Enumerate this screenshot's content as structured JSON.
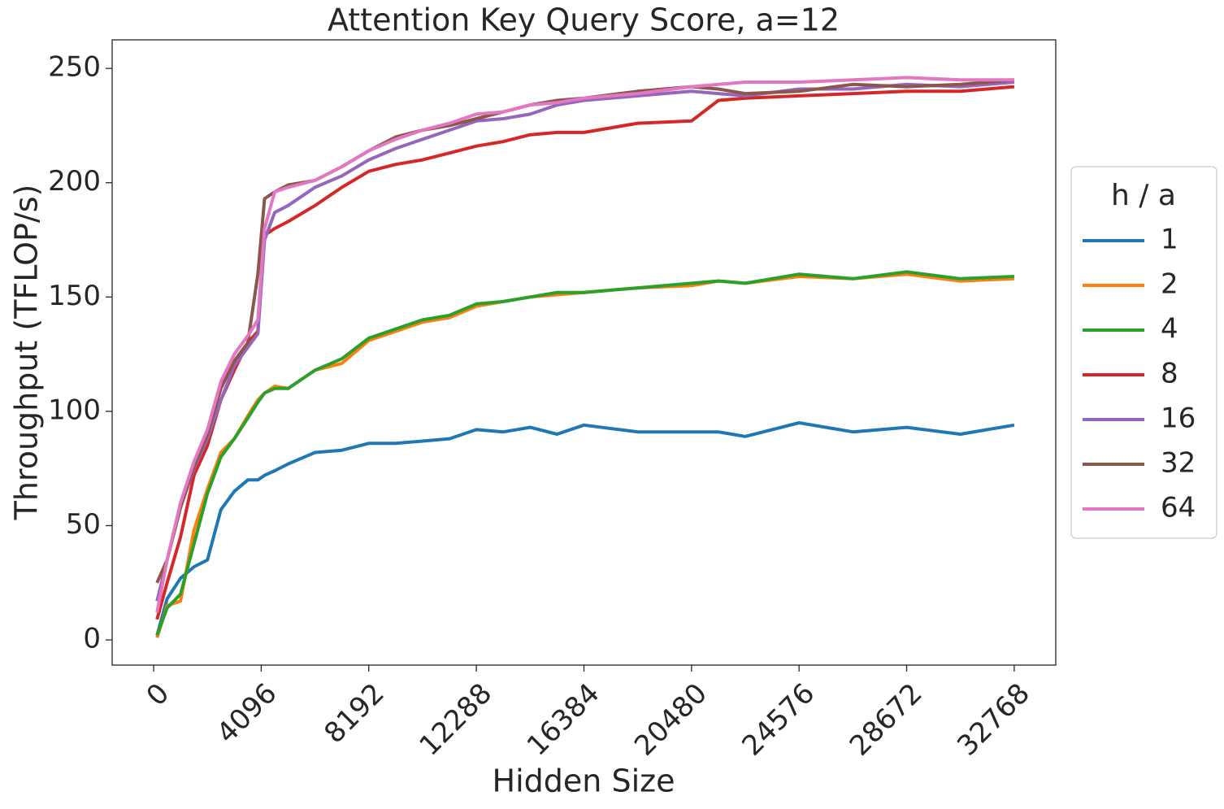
{
  "chart_data": {
    "type": "line",
    "title": "Attention Key Query Score, a=12",
    "xlabel": "Hidden Size",
    "ylabel": "Throughput (TFLOP/s)",
    "legend_title": "h / a",
    "legend": "right",
    "x": [
      128,
      512,
      1024,
      1536,
      2048,
      2560,
      3072,
      3584,
      3968,
      4224,
      4608,
      5120,
      6144,
      7168,
      8192,
      9216,
      10240,
      11264,
      12288,
      13312,
      14336,
      15360,
      16384,
      18432,
      20480,
      21504,
      22528,
      24576,
      26624,
      28672,
      30720,
      32768
    ],
    "series": [
      {
        "name": "1",
        "color": "#1f77b4",
        "values": [
          2,
          18,
          27,
          32,
          35,
          57,
          65,
          70,
          70,
          72,
          74,
          77,
          82,
          83,
          86,
          86,
          87,
          88,
          92,
          91,
          93,
          90,
          94,
          91,
          91,
          91,
          89,
          95,
          91,
          93,
          90,
          94
        ]
      },
      {
        "name": "2",
        "color": "#ff7f0e",
        "values": [
          1,
          15,
          17,
          48,
          66,
          82,
          88,
          98,
          105,
          108,
          111,
          110,
          118,
          121,
          131,
          135,
          139,
          141,
          146,
          148,
          150,
          151,
          152,
          154,
          155,
          157,
          156,
          159,
          158,
          160,
          157,
          158
        ]
      },
      {
        "name": "4",
        "color": "#2ca02c",
        "values": [
          2,
          14,
          20,
          42,
          64,
          80,
          88,
          97,
          104,
          108,
          110,
          110,
          118,
          123,
          132,
          136,
          140,
          142,
          147,
          148,
          150,
          152,
          152,
          154,
          156,
          157,
          156,
          160,
          158,
          161,
          158,
          159
        ]
      },
      {
        "name": "8",
        "color": "#d62728",
        "values": [
          9,
          25,
          45,
          72,
          85,
          105,
          118,
          130,
          135,
          177,
          180,
          183,
          190,
          198,
          205,
          208,
          210,
          213,
          216,
          218,
          221,
          222,
          222,
          226,
          227,
          236,
          237,
          238,
          239,
          240,
          240,
          242
        ]
      },
      {
        "name": "16",
        "color": "#9467bd",
        "values": [
          17,
          35,
          58,
          75,
          88,
          105,
          120,
          128,
          134,
          175,
          187,
          190,
          198,
          203,
          210,
          215,
          219,
          223,
          227,
          228,
          230,
          234,
          236,
          238,
          240,
          239,
          238,
          241,
          241,
          243,
          242,
          244
        ]
      },
      {
        "name": "32",
        "color": "#8c564b",
        "values": [
          25,
          35,
          58,
          76,
          90,
          110,
          122,
          130,
          160,
          193,
          196,
          199,
          201,
          207,
          214,
          220,
          223,
          225,
          228,
          231,
          234,
          236,
          237,
          240,
          242,
          241,
          239,
          240,
          243,
          242,
          243,
          245
        ]
      },
      {
        "name": "64",
        "color": "#e377c2",
        "values": [
          12,
          35,
          60,
          78,
          92,
          113,
          125,
          133,
          140,
          180,
          196,
          198,
          201,
          207,
          214,
          219,
          223,
          226,
          230,
          231,
          234,
          235,
          237,
          239,
          242,
          243,
          244,
          244,
          245,
          246,
          245,
          245
        ]
      }
    ],
    "xlim": [
      -1580,
      34350
    ],
    "xticks": [
      0,
      4096,
      8192,
      12288,
      16384,
      20480,
      24576,
      28672,
      32768
    ],
    "ylim": [
      -11,
      262.5
    ],
    "yticks": [
      0,
      50,
      100,
      150,
      200,
      250
    ],
    "grid": false
  }
}
